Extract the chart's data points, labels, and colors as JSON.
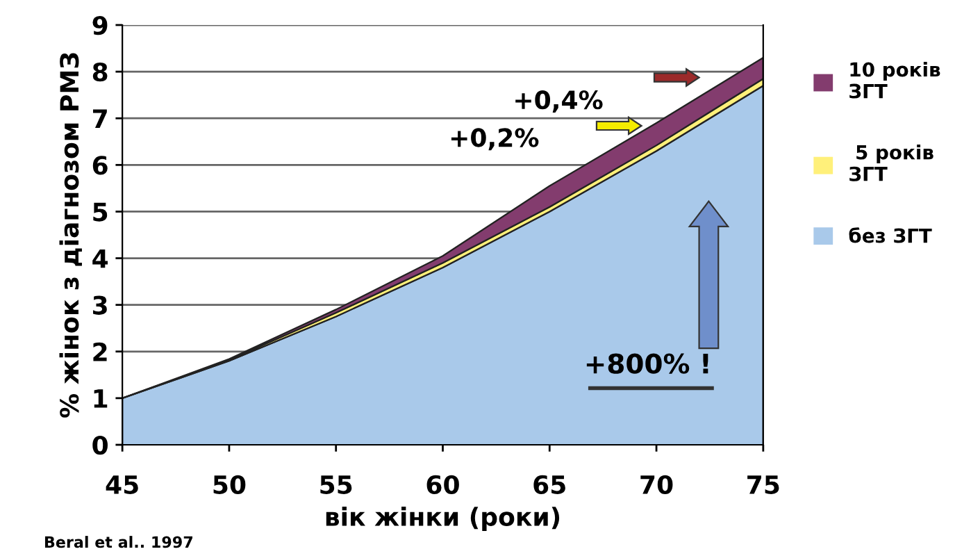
{
  "chart_data": {
    "type": "area",
    "stacked": true,
    "x": [
      45,
      50,
      55,
      60,
      65,
      70,
      75
    ],
    "series": [
      {
        "name": "без ЗГТ",
        "color": "#a9c9ea",
        "values": [
          1.0,
          1.8,
          2.75,
          3.8,
          5.0,
          6.3,
          7.7
        ]
      },
      {
        "name": " 5 років\nЗГТ",
        "color": "#fff07a",
        "values": [
          0,
          0.02,
          0.08,
          0.1,
          0.1,
          0.12,
          0.15
        ]
      },
      {
        "name": "10 років\nЗГТ",
        "color": "#833c6e",
        "values": [
          0,
          0.02,
          0.07,
          0.15,
          0.45,
          0.48,
          0.45
        ]
      }
    ],
    "xlabel": "вік жінки (роки)",
    "ylabel": "% жінок з діагнозом РМЗ",
    "xlim": [
      45,
      75
    ],
    "ylim": [
      0,
      9
    ],
    "xticks": [
      45,
      50,
      55,
      60,
      65,
      70,
      75
    ],
    "yticks": [
      0,
      1,
      2,
      3,
      4,
      5,
      6,
      7,
      8,
      9
    ],
    "grid": "y",
    "legend": "right",
    "annotations": [
      "+0,4%",
      "+0,2%",
      "+800% !",
      "Beral et al.. 1997"
    ]
  }
}
